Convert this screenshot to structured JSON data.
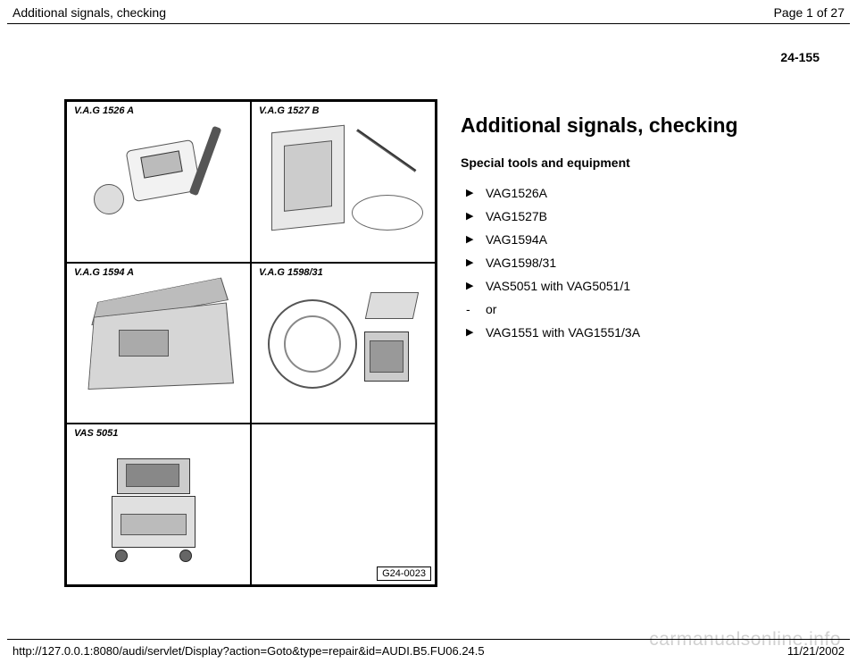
{
  "header": {
    "title": "Additional signals, checking",
    "page_indicator": "Page 1 of 27"
  },
  "page_number_top": "24-155",
  "diagram": {
    "cells": [
      {
        "label": "V.A.G 1526 A"
      },
      {
        "label": "V.A.G 1527 B"
      },
      {
        "label": "V.A.G 1594 A"
      },
      {
        "label": "V.A.G 1598/31"
      },
      {
        "label": "VAS 5051"
      },
      {
        "label": ""
      }
    ],
    "ref": "G24-0023"
  },
  "text": {
    "title": "Additional signals, checking",
    "subtitle": "Special tools and equipment",
    "items": [
      {
        "marker": "arrow",
        "text": "VAG1526A"
      },
      {
        "marker": "arrow",
        "text": "VAG1527B"
      },
      {
        "marker": "arrow",
        "text": "VAG1594A"
      },
      {
        "marker": "arrow",
        "text": "VAG1598/31"
      },
      {
        "marker": "arrow",
        "text": "VAS5051 with VAG5051/1"
      },
      {
        "marker": "dash",
        "text": "or"
      },
      {
        "marker": "arrow",
        "text": "VAG1551 with VAG1551/3A"
      }
    ]
  },
  "footer": {
    "url": "http://127.0.0.1:8080/audi/servlet/Display?action=Goto&type=repair&id=AUDI.B5.FU06.24.5",
    "date": "11/21/2002"
  },
  "watermark": "carmanualsonline.info",
  "colors": {
    "text": "#000000",
    "bg": "#ffffff",
    "sketch_fill": "#e8e8e8",
    "sketch_border": "#555555",
    "watermark": "rgba(120,120,120,0.35)"
  }
}
